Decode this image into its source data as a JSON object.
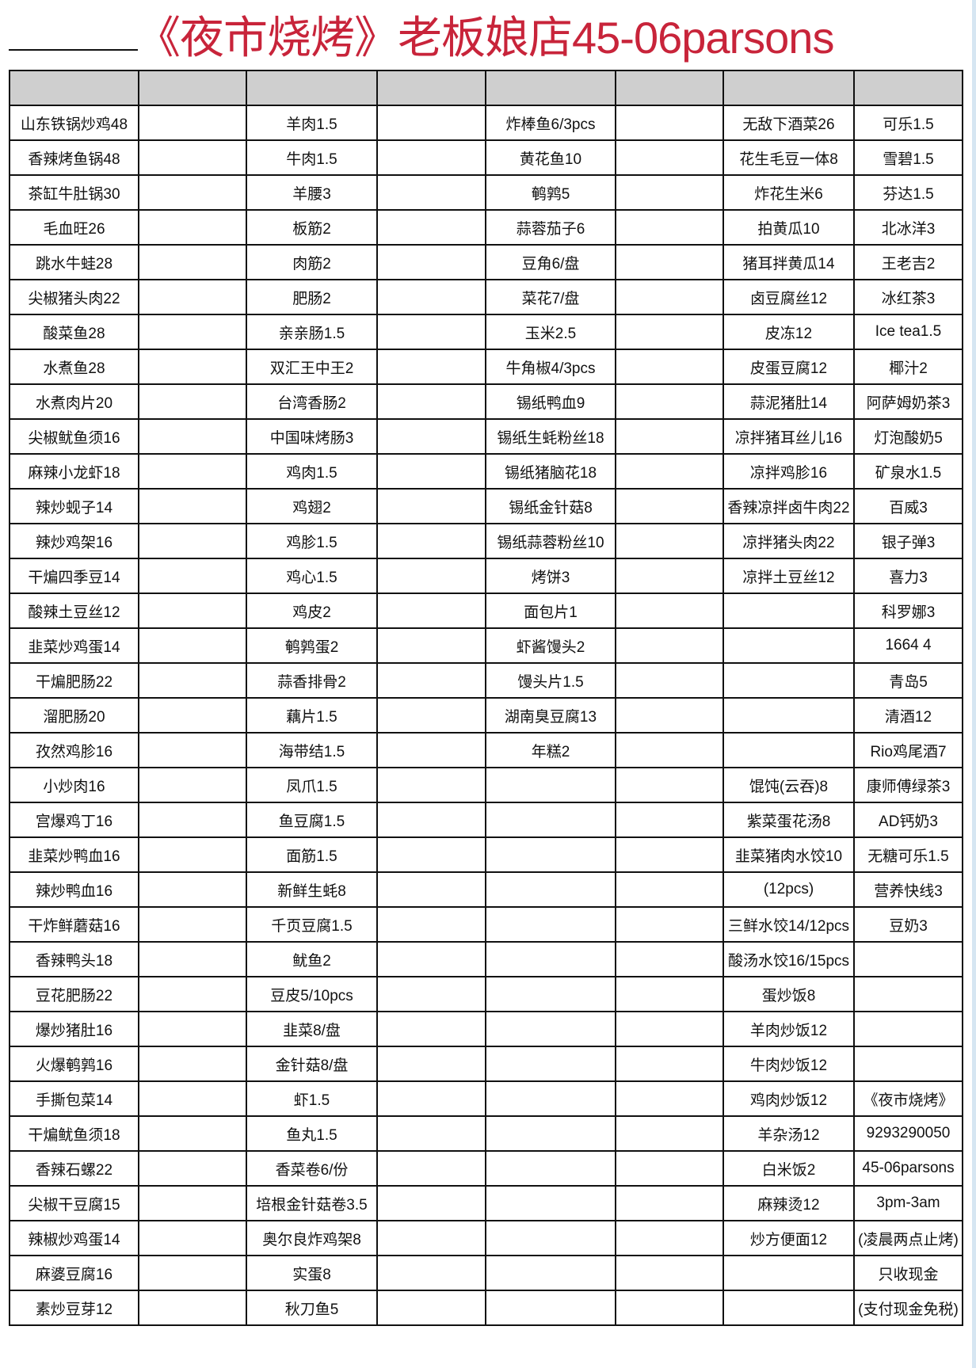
{
  "title": "《夜市烧烤》老板娘店45-06parsons",
  "columns": [
    [
      "山东铁锅炒鸡48",
      "香辣烤鱼锅48",
      "茶缸牛肚锅30",
      "毛血旺26",
      "跳水牛蛙28",
      "尖椒猪头肉22",
      "酸菜鱼28",
      "水煮鱼28",
      "水煮肉片20",
      "尖椒鱿鱼须16",
      "麻辣小龙虾18",
      "辣炒蚬子14",
      "辣炒鸡架16",
      "干煸四季豆14",
      "酸辣土豆丝12",
      "韭菜炒鸡蛋14",
      "干煸肥肠22",
      "溜肥肠20",
      "孜然鸡胗16",
      "小炒肉16",
      "宫爆鸡丁16",
      "韭菜炒鸭血16",
      "辣炒鸭血16",
      "干炸鲜蘑菇16",
      "香辣鸭头18",
      "豆花肥肠22",
      "爆炒猪肚16",
      "火爆鹌鹑16",
      "手撕包菜14",
      "干煸鱿鱼须18",
      "香辣石螺22",
      "尖椒干豆腐15",
      "辣椒炒鸡蛋14",
      "麻婆豆腐16",
      "素炒豆芽12"
    ],
    [],
    [
      "羊肉1.5",
      "牛肉1.5",
      "羊腰3",
      "板筋2",
      "肉筋2",
      "肥肠2",
      "亲亲肠1.5",
      "双汇王中王2",
      "台湾香肠2",
      "中国味烤肠3",
      "鸡肉1.5",
      "鸡翅2",
      "鸡胗1.5",
      "鸡心1.5",
      "鸡皮2",
      "鹌鹑蛋2",
      "蒜香排骨2",
      "藕片1.5",
      "海带结1.5",
      "凤爪1.5",
      "鱼豆腐1.5",
      "面筋1.5",
      "新鲜生蚝8",
      "千页豆腐1.5",
      "鱿鱼2",
      "豆皮5/10pcs",
      "韭菜8/盘",
      "金针菇8/盘",
      "虾1.5",
      "鱼丸1.5",
      "香菜卷6/份",
      "培根金针菇卷3.5",
      "奥尔良炸鸡架8",
      "实蛋8",
      "秋刀鱼5"
    ],
    [],
    [
      "炸棒鱼6/3pcs",
      "黄花鱼10",
      "鹌鹑5",
      "蒜蓉茄子6",
      "豆角6/盘",
      "菜花7/盘",
      "玉米2.5",
      "牛角椒4/3pcs",
      "锡纸鸭血9",
      "锡纸生蚝粉丝18",
      "锡纸猪脑花18",
      "锡纸金针菇8",
      "锡纸蒜蓉粉丝10",
      "烤饼3",
      "面包片1",
      "虾酱馒头2",
      "馒头片1.5",
      "湖南臭豆腐13",
      "年糕2"
    ],
    [],
    [
      "无敌下酒菜26",
      "花生毛豆一体8",
      "炸花生米6",
      "拍黄瓜10",
      "猪耳拌黄瓜14",
      "卤豆腐丝12",
      "皮冻12",
      "皮蛋豆腐12",
      "蒜泥猪肚14",
      "凉拌猪耳丝儿16",
      "凉拌鸡胗16",
      "香辣凉拌卤牛肉22",
      "凉拌猪头肉22",
      "凉拌土豆丝12",
      "",
      "",
      "",
      "",
      "",
      "馄饨(云吞)8",
      "紫菜蛋花汤8",
      "韭菜猪肉水饺10",
      "(12pcs)",
      "三鲜水饺14/12pcs",
      "酸汤水饺16/15pcs",
      "蛋炒饭8",
      "羊肉炒饭12",
      "牛肉炒饭12",
      "鸡肉炒饭12",
      "羊杂汤12",
      "白米饭2",
      "麻辣烫12",
      "炒方便面12",
      "",
      ""
    ],
    [
      "可乐1.5",
      "雪碧1.5",
      "芬达1.5",
      "北冰洋3",
      "王老吉2",
      "冰红茶3",
      "Ice tea1.5",
      "椰汁2",
      "阿萨姆奶茶3",
      "灯泡酸奶5",
      "矿泉水1.5",
      "百威3",
      "银子弹3",
      "喜力3",
      "科罗娜3",
      "1664  4",
      "青岛5",
      "清酒12",
      "Rio鸡尾酒7",
      "康师傅绿茶3",
      "AD钙奶3",
      "无糖可乐1.5",
      "营养快线3",
      "豆奶3",
      "",
      "",
      "",
      "",
      "《夜市烧烤》",
      "9293290050",
      "45-06parsons",
      "3pm-3am",
      "(凌晨两点止烤)",
      "只收现金",
      "(支付现金免税)"
    ]
  ],
  "colors": {
    "title": "#c8243a",
    "header_fill": "#cfcfcf",
    "border": "#111111"
  }
}
